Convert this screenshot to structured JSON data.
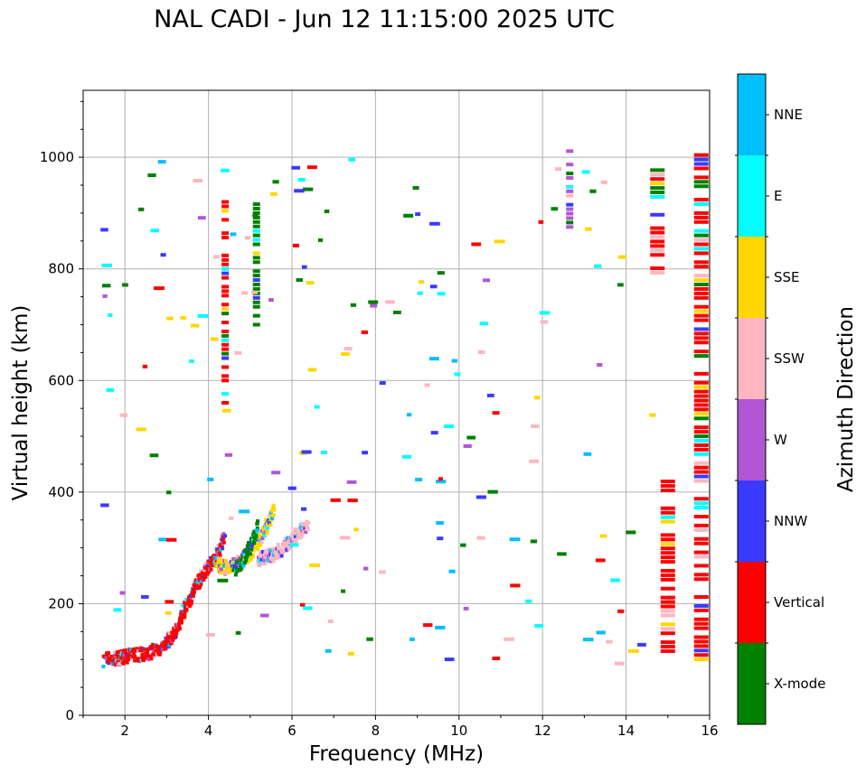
{
  "chart_data": {
    "type": "scatter",
    "title": "NAL CADI - Jun 12 11:15:00 2025 UTC",
    "xlabel": "Frequency (MHz)",
    "ylabel": "Virtual height (km)",
    "xlim": [
      1,
      16
    ],
    "ylim": [
      0,
      1120
    ],
    "xticks": [
      2,
      4,
      6,
      8,
      10,
      12,
      14,
      16
    ],
    "yticks": [
      0,
      200,
      400,
      600,
      800,
      1000
    ],
    "grid": true,
    "colorbar": {
      "label": "Azimuth Direction",
      "categories": [
        {
          "name": "X-mode",
          "color": "#008000"
        },
        {
          "name": "Vertical",
          "color": "#ff0000"
        },
        {
          "name": "NNW",
          "color": "#3a3aff"
        },
        {
          "name": "W",
          "color": "#b256d6"
        },
        {
          "name": "SSW",
          "color": "#ffb6c1"
        },
        {
          "name": "SSE",
          "color": "#ffd700"
        },
        {
          "name": "E",
          "color": "#00ffff"
        },
        {
          "name": "NNE",
          "color": "#00bfff"
        }
      ]
    },
    "traces": [
      {
        "name": "Vertical",
        "x": [
          1.5,
          1.8,
          2.0,
          2.2,
          2.5,
          2.8,
          3.0,
          3.2,
          3.4,
          3.6,
          3.8,
          4.0,
          4.2,
          4.4
        ],
        "y": [
          100,
          103,
          105,
          107,
          110,
          118,
          128,
          150,
          185,
          215,
          245,
          265,
          290,
          320
        ]
      },
      {
        "name": "SSE",
        "x": [
          4.2,
          4.4,
          4.6,
          4.8,
          5.0,
          5.2,
          5.4,
          5.6
        ],
        "y": [
          270,
          265,
          268,
          275,
          290,
          310,
          340,
          370
        ]
      },
      {
        "name": "SSW",
        "x": [
          5.2,
          5.4,
          5.6,
          5.8,
          6.0,
          6.2,
          6.4
        ],
        "y": [
          280,
          285,
          290,
          300,
          315,
          330,
          345
        ]
      },
      {
        "name": "X-mode",
        "x": [
          4.6,
          4.8,
          5.0,
          5.2
        ],
        "y": [
          260,
          275,
          300,
          340
        ]
      }
    ],
    "columns": [
      {
        "x": 4.4,
        "ymin": 560,
        "ymax": 920,
        "color": "Vertical"
      },
      {
        "x": 5.15,
        "ymin": 700,
        "ymax": 920,
        "color": "X-mode"
      },
      {
        "x": 12.65,
        "ymin": 875,
        "ymax": 1015,
        "color": "W"
      },
      {
        "x": 14.75,
        "ymin": 785,
        "ymax": 980,
        "color": "Vertical"
      },
      {
        "x": 15.0,
        "ymin": 115,
        "ymax": 420,
        "color": "Vertical"
      },
      {
        "x": 15.8,
        "ymin": 100,
        "ymax": 1015,
        "color": "Vertical"
      }
    ]
  }
}
